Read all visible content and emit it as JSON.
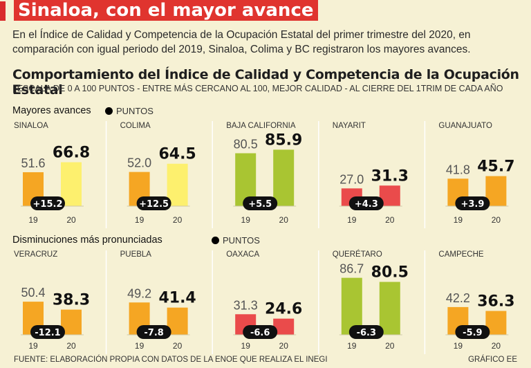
{
  "header": {
    "title": "Sinaloa, con el mayor avance",
    "intro": "En el Índice de Calidad y Competencia de la Ocupación Estatal del primer trimestre del 2020, en comparación con igual periodo del 2019, Sinaloa, Colima y BC registraron los mayores avances."
  },
  "chart_title": "Comportamiento del Índice de Calidad y Competencia de la Ocupación Estatal",
  "chart_subtitle": "| ESCALA DE 0 A 100 PUNTOS - ENTRE MÁS CERCANO AL 100, MEJOR CALIDAD - AL CIERRE DEL 1TRIM DE CADA AÑO",
  "sections": {
    "gains_label": "Mayores avances",
    "losses_label": "Disminuciones más pronunciadas",
    "legend_label": "PUNTOS"
  },
  "footer": {
    "source": "FUENTE: ELABORACIÓN PROPIA CON DATOS DE LA ENOE QUE REALIZA EL INEGI",
    "credit": "GRÁFICO EE"
  },
  "colors": {
    "orange": "#f5a623",
    "yellow": "#fdf06e",
    "green": "#a9c532",
    "red": "#ea4b4b",
    "badge": "#111111"
  },
  "chart_data": [
    {
      "type": "bar",
      "title": "SINALOA",
      "categories": [
        "19",
        "20"
      ],
      "values": [
        51.6,
        66.8
      ],
      "change": "+15.2",
      "colors": [
        "#f5a623",
        "#fdf06e"
      ]
    },
    {
      "type": "bar",
      "title": "COLIMA",
      "categories": [
        "19",
        "20"
      ],
      "values": [
        52.0,
        64.5
      ],
      "change": "+12.5",
      "colors": [
        "#f5a623",
        "#fdf06e"
      ]
    },
    {
      "type": "bar",
      "title": "BAJA CALIFORNIA",
      "categories": [
        "19",
        "20"
      ],
      "values": [
        80.5,
        85.9
      ],
      "change": "+5.5",
      "colors": [
        "#a9c532",
        "#a9c532"
      ]
    },
    {
      "type": "bar",
      "title": "NAYARIT",
      "categories": [
        "19",
        "20"
      ],
      "values": [
        27.0,
        31.3
      ],
      "change": "+4.3",
      "colors": [
        "#ea4b4b",
        "#ea4b4b"
      ]
    },
    {
      "type": "bar",
      "title": "GUANAJUATO",
      "categories": [
        "19",
        "20"
      ],
      "values": [
        41.8,
        45.7
      ],
      "change": "+3.9",
      "colors": [
        "#f5a623",
        "#f5a623"
      ]
    },
    {
      "type": "bar",
      "title": "VERACRUZ",
      "categories": [
        "19",
        "20"
      ],
      "values": [
        50.4,
        38.3
      ],
      "change": "-12.1",
      "colors": [
        "#f5a623",
        "#f5a623"
      ]
    },
    {
      "type": "bar",
      "title": "PUEBLA",
      "categories": [
        "19",
        "20"
      ],
      "values": [
        49.2,
        41.4
      ],
      "change": "-7.8",
      "colors": [
        "#f5a623",
        "#f5a623"
      ]
    },
    {
      "type": "bar",
      "title": "OAXACA",
      "categories": [
        "19",
        "20"
      ],
      "values": [
        31.3,
        24.6
      ],
      "change": "-6.6",
      "colors": [
        "#ea4b4b",
        "#ea4b4b"
      ]
    },
    {
      "type": "bar",
      "title": "QUERÉTARO",
      "categories": [
        "19",
        "20"
      ],
      "values": [
        86.7,
        80.5
      ],
      "change": "-6.3",
      "colors": [
        "#a9c532",
        "#a9c532"
      ]
    },
    {
      "type": "bar",
      "title": "CAMPECHE",
      "categories": [
        "19",
        "20"
      ],
      "values": [
        42.2,
        36.3
      ],
      "change": "-5.9",
      "colors": [
        "#f5a623",
        "#f5a623"
      ]
    }
  ]
}
